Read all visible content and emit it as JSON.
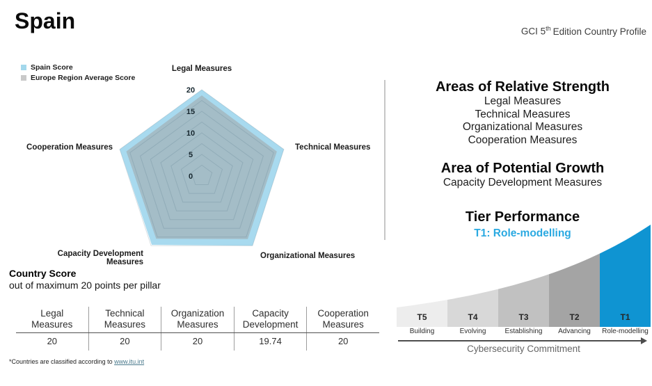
{
  "header": {
    "country": "Spain",
    "edition_prefix": "GCI 5",
    "edition_sup": "th",
    "edition_suffix": "Edition Country Profile"
  },
  "chart_data": [
    {
      "type": "radar",
      "max": 20,
      "rings": [
        2.5,
        5,
        7.5,
        10,
        12.5,
        15,
        17.5,
        20
      ],
      "tick_labels": [
        0,
        5,
        10,
        15,
        20
      ],
      "axes": [
        "Legal Measures",
        "Technical Measures",
        "Organizational Measures",
        "Capacity Development Measures",
        "Cooperation Measures"
      ],
      "series": [
        {
          "name": "Spain Score",
          "values": [
            20,
            20,
            20,
            19.74,
            20
          ],
          "color": "#a8daef",
          "opacity": 1
        },
        {
          "name": "Europe Region Average Score",
          "values": [
            18.7,
            18.3,
            18.1,
            18.0,
            18.4
          ],
          "color": "#9f9f9f",
          "opacity": 0.5
        }
      ],
      "legend_position": "top-left",
      "legend_swatch_colors": {
        "spain": "#a3d8ec",
        "europe": "#c9c9c9"
      }
    },
    {
      "type": "area",
      "title": "Tier Performance",
      "xlabel": "Cybersecurity Commitment",
      "tiers": [
        {
          "id": "T5",
          "label": "Building",
          "color": "#ededed"
        },
        {
          "id": "T4",
          "label": "Evolving",
          "color": "#d8d8d8"
        },
        {
          "id": "T3",
          "label": "Establishing",
          "color": "#c1c1c1"
        },
        {
          "id": "T2",
          "label": "Advancing",
          "color": "#a4a4a4"
        },
        {
          "id": "T1",
          "label": "Role-modelling",
          "color": "#0f94d2"
        }
      ]
    }
  ],
  "right_panel": {
    "strength_title": "Areas of Relative Strength",
    "strength_items": [
      "Legal Measures",
      "Technical Measures",
      "Organizational Measures",
      "Cooperation Measures"
    ],
    "growth_title": "Area of Potential Growth",
    "growth_item": "Capacity Development Measures",
    "tier_title": "Tier Performance",
    "tier_value": "T1: Role-modelling",
    "tier_value_color": "#2aa9e1"
  },
  "country_score": {
    "title": "Country Score",
    "subtitle": "out of maximum 20 points per pillar",
    "columns": [
      {
        "line1": "Legal",
        "line2": "Measures"
      },
      {
        "line1": "Technical",
        "line2": "Measures"
      },
      {
        "line1": "Organization",
        "line2": "Measures"
      },
      {
        "line1": "Capacity",
        "line2": "Development"
      },
      {
        "line1": "Cooperation",
        "line2": "Measures"
      }
    ],
    "values": [
      "20",
      "20",
      "20",
      "19.74",
      "20"
    ]
  },
  "footnote": {
    "text": "*Countries are classified according to ",
    "link": "www.itu.int"
  }
}
